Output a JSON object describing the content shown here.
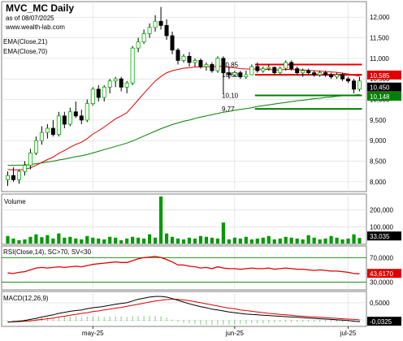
{
  "header": {
    "title": "MVC_MC Daily",
    "date_line": "as of 08/07/2025",
    "source": "www.wealth-lab.com"
  },
  "colors": {
    "up": "#00b000",
    "down": "#000000",
    "ema21": "#e00000",
    "ema70": "#008000",
    "resistance": "#e00000",
    "support": "#008000",
    "grid": "#d8d8d8",
    "panel_border": "#808080",
    "volume": "#009900",
    "rsi": "#e00000",
    "macd": "#000000",
    "macd_signal": "#e00000",
    "hist": "#009900",
    "price_tag": "#000000",
    "support_tag": "#008000",
    "resist_tag": "#e00000"
  },
  "price_panel": {
    "legend": [
      "EMA(Close,21)",
      "EMA(Close,70)"
    ],
    "y_ticks": [
      "12,000",
      "11,500",
      "11,000",
      "10,500",
      "10,000",
      "9,500",
      "9,000",
      "8,500",
      "8,000"
    ],
    "last_price_tag": "10,450",
    "resist_tag": "10,585",
    "support_tag": "10,148",
    "level_labels": [
      "10,85",
      "10,60",
      "10,10",
      "9,77"
    ]
  },
  "volume_panel": {
    "label": "Volume",
    "y_ticks": [
      "200,000",
      "100,000"
    ],
    "last_tag": "33,035"
  },
  "rsi_panel": {
    "label": "RSI(Close,14), SC>70, SV<30",
    "y_ticks": [
      "70,0000",
      "30,0000"
    ],
    "last_tag": "43,6170"
  },
  "macd_panel": {
    "label": "MACD(12,26,9)",
    "y_ticks": [
      "0,5000",
      "0,0000"
    ],
    "last_tag": "-0,0325"
  },
  "x_axis": {
    "ticks": [
      "may-25",
      "jun-25",
      "jul-25"
    ]
  },
  "chart_data": {
    "type": "candlestick",
    "title": "MVC_MC Daily",
    "ylim": [
      7800,
      12300
    ],
    "candles": [
      {
        "o": 8050,
        "h": 8250,
        "l": 7900,
        "c": 8150
      },
      {
        "o": 8150,
        "h": 8350,
        "l": 8000,
        "c": 8050
      },
      {
        "o": 8050,
        "h": 8300,
        "l": 7950,
        "c": 8250
      },
      {
        "o": 8250,
        "h": 8500,
        "l": 8150,
        "c": 8400
      },
      {
        "o": 8400,
        "h": 8800,
        "l": 8300,
        "c": 8700
      },
      {
        "o": 8700,
        "h": 9100,
        "l": 8650,
        "c": 9000
      },
      {
        "o": 9000,
        "h": 9350,
        "l": 8900,
        "c": 9200
      },
      {
        "o": 9200,
        "h": 9400,
        "l": 9050,
        "c": 9300
      },
      {
        "o": 9300,
        "h": 9500,
        "l": 9100,
        "c": 9150
      },
      {
        "o": 9150,
        "h": 9700,
        "l": 9100,
        "c": 9600
      },
      {
        "o": 9600,
        "h": 9700,
        "l": 9300,
        "c": 9400
      },
      {
        "o": 9400,
        "h": 9800,
        "l": 9350,
        "c": 9700
      },
      {
        "o": 9700,
        "h": 9950,
        "l": 9550,
        "c": 9600
      },
      {
        "o": 9600,
        "h": 9750,
        "l": 9400,
        "c": 9500
      },
      {
        "o": 9500,
        "h": 10000,
        "l": 9450,
        "c": 9900
      },
      {
        "o": 9900,
        "h": 10300,
        "l": 9850,
        "c": 10250
      },
      {
        "o": 10250,
        "h": 10350,
        "l": 9950,
        "c": 10050
      },
      {
        "o": 10050,
        "h": 10350,
        "l": 9950,
        "c": 10300
      },
      {
        "o": 10300,
        "h": 10500,
        "l": 10150,
        "c": 10450
      },
      {
        "o": 10450,
        "h": 10550,
        "l": 10300,
        "c": 10500
      },
      {
        "o": 10500,
        "h": 10550,
        "l": 10200,
        "c": 10300
      },
      {
        "o": 10300,
        "h": 10450,
        "l": 10150,
        "c": 10400
      },
      {
        "o": 10400,
        "h": 11300,
        "l": 10350,
        "c": 11250
      },
      {
        "o": 11250,
        "h": 11500,
        "l": 11150,
        "c": 11400
      },
      {
        "o": 11400,
        "h": 11700,
        "l": 11350,
        "c": 11600
      },
      {
        "o": 11600,
        "h": 11850,
        "l": 11500,
        "c": 11750
      },
      {
        "o": 11750,
        "h": 12050,
        "l": 11650,
        "c": 11900
      },
      {
        "o": 11900,
        "h": 12250,
        "l": 11700,
        "c": 11800
      },
      {
        "o": 11800,
        "h": 11950,
        "l": 11450,
        "c": 11550
      },
      {
        "o": 11550,
        "h": 11650,
        "l": 11100,
        "c": 11200
      },
      {
        "o": 11200,
        "h": 11250,
        "l": 10850,
        "c": 10950
      },
      {
        "o": 10950,
        "h": 11100,
        "l": 10900,
        "c": 11050
      },
      {
        "o": 11050,
        "h": 11150,
        "l": 10800,
        "c": 10900
      },
      {
        "o": 10900,
        "h": 11000,
        "l": 10800,
        "c": 10950
      },
      {
        "o": 10950,
        "h": 11000,
        "l": 10750,
        "c": 10800
      },
      {
        "o": 10800,
        "h": 10900,
        "l": 10700,
        "c": 10850
      },
      {
        "o": 10850,
        "h": 10900,
        "l": 10650,
        "c": 10700
      },
      {
        "o": 10700,
        "h": 11050,
        "l": 10650,
        "c": 11000
      },
      {
        "o": 11000,
        "h": 11050,
        "l": 10150,
        "c": 10650
      },
      {
        "o": 10650,
        "h": 10800,
        "l": 10500,
        "c": 10600
      },
      {
        "o": 10600,
        "h": 10700,
        "l": 10550,
        "c": 10650
      },
      {
        "o": 10650,
        "h": 10700,
        "l": 10500,
        "c": 10550
      },
      {
        "o": 10550,
        "h": 10700,
        "l": 10500,
        "c": 10600
      },
      {
        "o": 10600,
        "h": 10850,
        "l": 10600,
        "c": 10800
      },
      {
        "o": 10800,
        "h": 10900,
        "l": 10650,
        "c": 10700
      },
      {
        "o": 10700,
        "h": 10800,
        "l": 10650,
        "c": 10750
      },
      {
        "o": 10750,
        "h": 10850,
        "l": 10700,
        "c": 10780
      },
      {
        "o": 10780,
        "h": 10800,
        "l": 10600,
        "c": 10650
      },
      {
        "o": 10650,
        "h": 10800,
        "l": 10620,
        "c": 10760
      },
      {
        "o": 10760,
        "h": 10950,
        "l": 10700,
        "c": 10900
      },
      {
        "o": 10900,
        "h": 10950,
        "l": 10700,
        "c": 10750
      },
      {
        "o": 10750,
        "h": 10800,
        "l": 10600,
        "c": 10650
      },
      {
        "o": 10650,
        "h": 10750,
        "l": 10550,
        "c": 10700
      },
      {
        "o": 10700,
        "h": 10750,
        "l": 10600,
        "c": 10650
      },
      {
        "o": 10650,
        "h": 10700,
        "l": 10550,
        "c": 10600
      },
      {
        "o": 10600,
        "h": 10700,
        "l": 10550,
        "c": 10650
      },
      {
        "o": 10650,
        "h": 10700,
        "l": 10550,
        "c": 10600
      },
      {
        "o": 10600,
        "h": 10650,
        "l": 10500,
        "c": 10550
      },
      {
        "o": 10550,
        "h": 10650,
        "l": 10500,
        "c": 10600
      },
      {
        "o": 10600,
        "h": 10650,
        "l": 10450,
        "c": 10500
      },
      {
        "o": 10500,
        "h": 10550,
        "l": 10400,
        "c": 10450
      },
      {
        "o": 10450,
        "h": 10500,
        "l": 10150,
        "c": 10250
      },
      {
        "o": 10250,
        "h": 10550,
        "l": 10200,
        "c": 10450
      }
    ],
    "ema21": [
      8300,
      8290,
      8290,
      8300,
      8340,
      8400,
      8470,
      8540,
      8600,
      8690,
      8760,
      8840,
      8910,
      8960,
      9050,
      9160,
      9240,
      9330,
      9430,
      9530,
      9600,
      9680,
      9830,
      9990,
      10150,
      10300,
      10450,
      10560,
      10650,
      10700,
      10730,
      10760,
      10770,
      10790,
      10790,
      10800,
      10790,
      10810,
      10800,
      10780,
      10770,
      10750,
      10740,
      10740,
      10740,
      10730,
      10730,
      10720,
      10720,
      10730,
      10730,
      10720,
      10720,
      10710,
      10700,
      10690,
      10680,
      10670,
      10660,
      10640,
      10620,
      10590,
      10570
    ],
    "ema70": [
      8400,
      8400,
      8400,
      8410,
      8420,
      8440,
      8460,
      8480,
      8500,
      8530,
      8550,
      8580,
      8610,
      8630,
      8660,
      8700,
      8740,
      8780,
      8820,
      8860,
      8900,
      8940,
      8990,
      9050,
      9110,
      9170,
      9230,
      9290,
      9340,
      9390,
      9430,
      9470,
      9500,
      9540,
      9570,
      9600,
      9630,
      9660,
      9690,
      9710,
      9740,
      9760,
      9780,
      9800,
      9830,
      9850,
      9870,
      9890,
      9910,
      9930,
      9950,
      9970,
      9980,
      10000,
      10020,
      10030,
      10050,
      10060,
      10080,
      10090,
      10100,
      10110,
      10120
    ],
    "volume": [
      45000,
      30000,
      20000,
      25000,
      40000,
      55000,
      38000,
      50000,
      30000,
      60000,
      35000,
      40000,
      30000,
      25000,
      45000,
      35000,
      30000,
      25000,
      40000,
      35000,
      20000,
      30000,
      40000,
      35000,
      30000,
      55000,
      35000,
      280000,
      60000,
      40000,
      30000,
      25000,
      35000,
      30000,
      45000,
      40000,
      35000,
      30000,
      125000,
      25000,
      35000,
      30000,
      40000,
      25000,
      30000,
      35000,
      45000,
      25000,
      30000,
      40000,
      35000,
      30000,
      25000,
      50000,
      35000,
      25000,
      30000,
      45000,
      35000,
      25000,
      30000,
      55000,
      33035
    ],
    "rsi": [
      45,
      44,
      46,
      47,
      50,
      53,
      54,
      53,
      54,
      55,
      54,
      55,
      56,
      55,
      57,
      59,
      60,
      61,
      62,
      63,
      62,
      62,
      65,
      68,
      70,
      71,
      72,
      70,
      67,
      63,
      58,
      58,
      56,
      55,
      53,
      54,
      52,
      55,
      53,
      52,
      52,
      51,
      52,
      53,
      52,
      52,
      53,
      51,
      52,
      53,
      52,
      51,
      51,
      50,
      49,
      50,
      49,
      48,
      48,
      47,
      46,
      44,
      43.617
    ],
    "macd": [
      -0.05,
      -0.03,
      -0.02,
      0.0,
      0.03,
      0.06,
      0.1,
      0.13,
      0.16,
      0.2,
      0.23,
      0.26,
      0.28,
      0.3,
      0.33,
      0.36,
      0.38,
      0.4,
      0.43,
      0.46,
      0.48,
      0.5,
      0.55,
      0.6,
      0.63,
      0.66,
      0.68,
      0.68,
      0.66,
      0.62,
      0.57,
      0.52,
      0.47,
      0.43,
      0.39,
      0.36,
      0.32,
      0.3,
      0.27,
      0.24,
      0.22,
      0.2,
      0.18,
      0.17,
      0.16,
      0.15,
      0.14,
      0.13,
      0.12,
      0.11,
      0.1,
      0.09,
      0.08,
      0.07,
      0.06,
      0.05,
      0.04,
      0.03,
      0.02,
      0.01,
      0.0,
      -0.02,
      -0.0325
    ],
    "macd_signal": [
      -0.04,
      -0.04,
      -0.03,
      -0.02,
      -0.01,
      0.01,
      0.03,
      0.05,
      0.07,
      0.1,
      0.12,
      0.15,
      0.17,
      0.2,
      0.22,
      0.25,
      0.27,
      0.3,
      0.32,
      0.35,
      0.37,
      0.4,
      0.43,
      0.46,
      0.49,
      0.52,
      0.55,
      0.57,
      0.59,
      0.6,
      0.6,
      0.58,
      0.56,
      0.53,
      0.5,
      0.47,
      0.44,
      0.41,
      0.38,
      0.35,
      0.33,
      0.3,
      0.28,
      0.26,
      0.24,
      0.22,
      0.2,
      0.19,
      0.17,
      0.16,
      0.15,
      0.13,
      0.12,
      0.11,
      0.1,
      0.09,
      0.08,
      0.07,
      0.06,
      0.05,
      0.04,
      0.03,
      0.02
    ],
    "levels": [
      {
        "label": "10,85",
        "value": 10850,
        "kind": "resistance",
        "from_bar": 44,
        "to_bar": 63
      },
      {
        "label": "10,60",
        "value": 10600,
        "kind": "resistance",
        "from_bar": 44,
        "to_bar": 63
      },
      {
        "label": "10,10",
        "value": 10100,
        "kind": "support",
        "from_bar": 44,
        "to_bar": 63
      },
      {
        "label": "9,77",
        "value": 9770,
        "kind": "support",
        "from_bar": 44,
        "to_bar": 63
      }
    ],
    "x_tick_bars": [
      15,
      40,
      60
    ],
    "volume_ylim": [
      0,
      280000
    ],
    "rsi_ylim": [
      20,
      85
    ],
    "macd_ylim": [
      -0.12,
      0.75
    ]
  }
}
